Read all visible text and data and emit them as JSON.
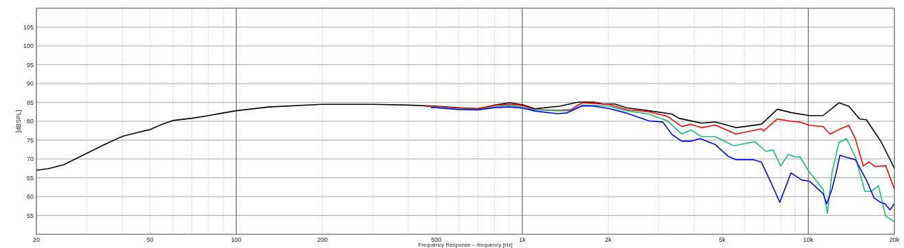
{
  "chart_data": {
    "type": "line",
    "xlabel": "Frequency Response -- frequency [Hz]",
    "ylabel": "[dBSPL]",
    "log": "x",
    "grid": true,
    "xlim": [
      20,
      20000
    ],
    "ylim": [
      50,
      110
    ],
    "xticks": [
      20,
      {
        "value": 30,
        "label": null
      },
      {
        "value": 40,
        "label": null
      },
      50,
      {
        "value": 60,
        "label": null
      },
      {
        "value": 70,
        "label": null
      },
      {
        "value": 80,
        "label": null
      },
      {
        "value": 90,
        "label": null
      },
      100,
      200,
      {
        "value": 300,
        "label": null
      },
      {
        "value": 400,
        "label": null
      },
      500,
      {
        "value": 600,
        "label": null
      },
      {
        "value": 700,
        "label": null
      },
      {
        "value": 800,
        "label": null
      },
      {
        "value": 900,
        "label": null
      },
      {
        "value": 1000,
        "label": "1k"
      },
      {
        "value": 2000,
        "label": "2k"
      },
      {
        "value": 3000,
        "label": null
      },
      {
        "value": 4000,
        "label": null
      },
      {
        "value": 5000,
        "label": "5k"
      },
      {
        "value": 6000,
        "label": null
      },
      {
        "value": 7000,
        "label": null
      },
      {
        "value": 8000,
        "label": null
      },
      {
        "value": 9000,
        "label": null
      },
      {
        "value": 10000,
        "label": "10k"
      },
      {
        "value": 20000,
        "label": "20k"
      }
    ],
    "yticks": [
      55,
      60,
      65,
      70,
      75,
      80,
      85,
      90,
      95,
      100,
      105
    ],
    "series": [
      {
        "color": "#000000",
        "x": [
          20,
          22,
          25,
          30,
          35,
          40,
          45,
          50,
          55,
          60,
          70,
          80,
          90,
          100,
          130,
          200,
          300,
          400,
          500,
          600,
          700,
          800,
          900,
          1000,
          1106,
          1350,
          1570,
          1780,
          1920,
          2105,
          2310,
          2775,
          3335,
          3530,
          4240,
          4730,
          5585,
          6855,
          7800,
          8710,
          10090,
          11260,
          12800,
          13850,
          15140,
          15960,
          17960,
          20000
        ],
        "values": [
          67,
          67.4,
          68.5,
          71.5,
          74,
          76,
          77,
          77.8,
          79.2,
          80.2,
          80.8,
          81.5,
          82.2,
          82.8,
          83.8,
          84.5,
          84.5,
          84.3,
          84,
          83.6,
          83.2,
          84.3,
          84.9,
          84.4,
          83.3,
          84,
          85.1,
          85.1,
          84.6,
          84.6,
          83.6,
          82.8,
          81.9,
          80.8,
          79.5,
          79.8,
          78.3,
          79.2,
          83.2,
          82.3,
          81.5,
          81.5,
          84.9,
          84,
          80.6,
          80.4,
          74.6,
          67.5
        ]
      },
      {
        "color": "#ff0000",
        "x": [
          458,
          500,
          600,
          700,
          800,
          900,
          1000,
          1106,
          1350,
          1480,
          1620,
          1780,
          2000,
          2310,
          2775,
          3220,
          3610,
          3880,
          4240,
          4730,
          5585,
          6855,
          6970,
          7800,
          8710,
          9330,
          10090,
          11260,
          11920,
          12800,
          13850,
          14620,
          15570,
          16310,
          17100,
          18650,
          20000
        ],
        "values": [
          84,
          83.9,
          83.5,
          83.4,
          84.2,
          84.5,
          84.2,
          83.1,
          82.9,
          83.1,
          84.9,
          84.7,
          84.5,
          83.1,
          82.5,
          81.3,
          78.6,
          79.2,
          78.3,
          79,
          76.6,
          78,
          77.4,
          80.6,
          80,
          79.8,
          78.9,
          78.6,
          76.6,
          77.8,
          78.9,
          75.3,
          68.1,
          69.2,
          68,
          68.2,
          62
        ]
      },
      {
        "color": "#18b884",
        "x": [
          480,
          500,
          600,
          700,
          800,
          900,
          1000,
          1106,
          1350,
          1480,
          1620,
          1780,
          2000,
          2310,
          2775,
          3220,
          3610,
          3880,
          4240,
          4730,
          5490,
          6500,
          7100,
          7540,
          8000,
          8520,
          9050,
          9330,
          10090,
          11260,
          11660,
          12100,
          12800,
          13600,
          14620,
          15770,
          16650,
          17580,
          18650,
          20000
        ],
        "values": [
          83.8,
          83.7,
          83.2,
          83.1,
          83.8,
          84.2,
          83.7,
          83,
          82.8,
          82.8,
          84.3,
          84.2,
          84,
          82.8,
          81.9,
          80.1,
          76.6,
          77.7,
          75.9,
          75.9,
          73.5,
          74.6,
          72,
          72.4,
          68.1,
          71.2,
          70.5,
          70.6,
          66.5,
          62,
          55.6,
          66.2,
          74.4,
          75.4,
          70.5,
          61.4,
          61.4,
          62.9,
          54.8,
          53.3
        ]
      },
      {
        "color": "#0000ff",
        "x": [
          480,
          500,
          600,
          700,
          800,
          900,
          1000,
          1106,
          1330,
          1430,
          1620,
          1780,
          2000,
          2310,
          2775,
          3100,
          3335,
          3610,
          3880,
          4180,
          4730,
          5250,
          5585,
          6400,
          6850,
          7400,
          7950,
          8700,
          9500,
          10090,
          11260,
          11600,
          12100,
          12500,
          12900,
          13600,
          14620,
          15960,
          17000,
          17960,
          18560,
          19300,
          20000
        ],
        "values": [
          83.6,
          83.6,
          83.1,
          83,
          83.6,
          83.8,
          83.5,
          82.7,
          82,
          82.2,
          84.1,
          84,
          83.4,
          82.2,
          80.1,
          79.8,
          76.5,
          74.7,
          74.7,
          75.4,
          73.8,
          70.7,
          69.8,
          69.8,
          69.2,
          63.8,
          58.5,
          66.3,
          64.4,
          64.1,
          60.8,
          58.1,
          62,
          66.2,
          71,
          70.4,
          69.8,
          64.4,
          59.6,
          58.4,
          58.1,
          56.5,
          58.1
        ]
      }
    ]
  }
}
